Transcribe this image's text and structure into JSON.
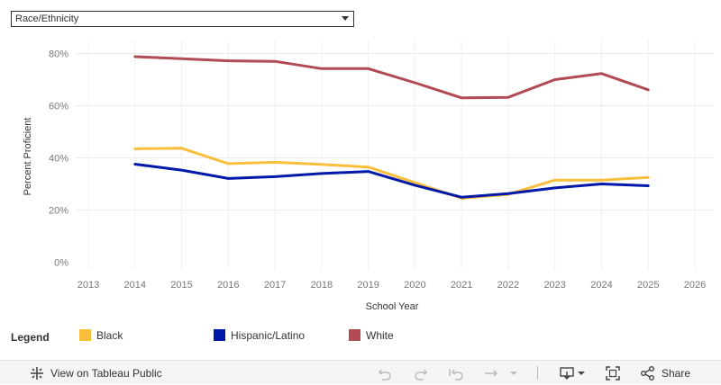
{
  "filter": {
    "selected": "Race/Ethnicity"
  },
  "chart_data": {
    "type": "line",
    "title": "",
    "xlabel": "School Year",
    "ylabel": "Percent Proficient",
    "xlim": [
      2013,
      2026
    ],
    "ylim": [
      0,
      80
    ],
    "x_ticks": [
      "2013",
      "2014",
      "2015",
      "2016",
      "2017",
      "2018",
      "2019",
      "2020",
      "2021",
      "2022",
      "2023",
      "2024",
      "2025",
      "2026"
    ],
    "y_ticks": [
      "0%",
      "20%",
      "40%",
      "60%",
      "80%"
    ],
    "x": [
      2014,
      2015,
      2016,
      2017,
      2018,
      2019,
      2020,
      2021,
      2022,
      2023,
      2024,
      2025
    ],
    "series": [
      {
        "name": "Black",
        "color": "#f9be3b",
        "values": [
          43.5,
          43.7,
          37.8,
          38.3,
          37.5,
          36.5,
          30.5,
          24.5,
          26.0,
          31.5,
          31.5,
          32.5
        ]
      },
      {
        "name": "Hispanic/Latino",
        "color": "#0019a8",
        "values": [
          37.6,
          35.3,
          32.1,
          32.8,
          34.0,
          34.8,
          29.5,
          24.9,
          26.3,
          28.5,
          30.0,
          29.3
        ]
      },
      {
        "name": "White",
        "color": "#b14a54",
        "values": [
          78.8,
          78.0,
          77.2,
          77.0,
          74.2,
          74.2,
          68.8,
          63.0,
          63.2,
          70.0,
          72.3,
          66.1
        ]
      }
    ],
    "grid": true,
    "legend_position": "bottom"
  },
  "legend": {
    "title": "Legend",
    "items": [
      {
        "label": "Black",
        "color": "#f9be3b"
      },
      {
        "label": "Hispanic/Latino",
        "color": "#0019a8"
      },
      {
        "label": "White",
        "color": "#b14a54"
      }
    ]
  },
  "toolbar": {
    "view_label": "View on Tableau Public",
    "share_label": "Share"
  }
}
